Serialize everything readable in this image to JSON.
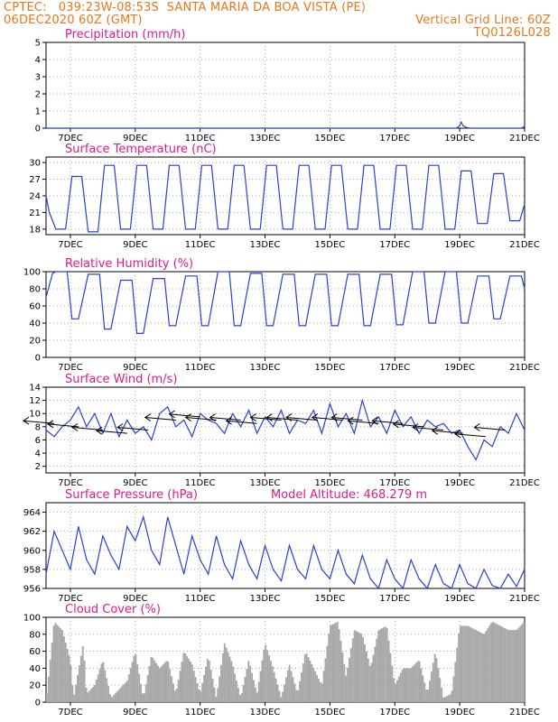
{
  "header": {
    "line1": "CPTEC:   039:23W-08:53S  SANTA MARIA DA BOA VISTA (PE)",
    "line2_left": "06DEC2020 60Z (GMT)",
    "line2_right": "Vertical Grid Line: 60Z",
    "line3_right": "TQ0126L028"
  },
  "colors": {
    "header": "#e8761a",
    "title": "#e0198c",
    "line": "#2a3fd6",
    "cloud": "#a8a8a8",
    "wind_arrow": "#000000"
  },
  "x_ticks": [
    "7DEC",
    "9DEC",
    "11DEC",
    "13DEC",
    "15DEC",
    "17DEC",
    "19DEC",
    "21DEC"
  ],
  "x_tick_days": [
    7,
    9,
    11,
    13,
    15,
    17,
    19,
    21
  ],
  "chart_data": [
    {
      "type": "line",
      "title": "Precipitation (mm/h)",
      "ylim": [
        0,
        5
      ],
      "yticks": [
        0,
        1,
        2,
        3,
        4,
        5
      ],
      "grid": "dotted",
      "series": [
        {
          "x_days": [
            6.25,
            18.9,
            19.0,
            19.05,
            19.1,
            19.2,
            19.3,
            20.9,
            21.0
          ],
          "values": [
            0,
            0,
            0.15,
            0.35,
            0.15,
            0.05,
            0,
            0,
            0.1
          ]
        }
      ]
    },
    {
      "type": "line",
      "title": "Surface Temperature (nC)",
      "ylim": [
        17,
        31
      ],
      "yticks": [
        18,
        21,
        24,
        27,
        30
      ],
      "grid": "dotted",
      "series": [
        {
          "x_days": [
            6.25,
            6.35,
            6.55,
            6.85,
            7.05,
            7.35,
            7.55,
            7.85,
            8.05,
            8.35,
            8.55,
            8.85,
            9.05,
            9.35,
            9.55,
            9.85,
            10.05,
            10.35,
            10.55,
            10.85,
            11.05,
            11.35,
            11.55,
            11.85,
            12.05,
            12.35,
            12.55,
            12.85,
            13.05,
            13.35,
            13.55,
            13.85,
            14.05,
            14.35,
            14.55,
            14.85,
            15.05,
            15.35,
            15.55,
            15.85,
            16.05,
            16.35,
            16.55,
            16.85,
            17.05,
            17.35,
            17.55,
            17.85,
            18.05,
            18.35,
            18.55,
            18.85,
            19.05,
            19.35,
            19.55,
            19.85,
            20.05,
            20.35,
            20.55,
            20.85,
            21.0
          ],
          "values": [
            24,
            21,
            18,
            18,
            27.5,
            27.5,
            17.5,
            17.5,
            29.5,
            29.5,
            18,
            18,
            29.5,
            29.5,
            18,
            18,
            29.5,
            29.5,
            18,
            18,
            29.5,
            29.5,
            18,
            18,
            29.5,
            29.5,
            18,
            18,
            29.5,
            29.5,
            18,
            18,
            29.5,
            29.5,
            18,
            18,
            29.5,
            29.5,
            18,
            18,
            29.5,
            29.5,
            18,
            18,
            29.5,
            29.5,
            18,
            18,
            29.5,
            29.5,
            18,
            18,
            28.5,
            28.5,
            19,
            19,
            28,
            28,
            19.5,
            19.5,
            22.5
          ]
        }
      ]
    },
    {
      "type": "line",
      "title": "Relative Humidity (%)",
      "ylim": [
        0,
        100
      ],
      "yticks": [
        0,
        20,
        40,
        60,
        80,
        100
      ],
      "grid": "dotted",
      "series": [
        {
          "x_days": [
            6.25,
            6.45,
            6.55,
            6.9,
            7.05,
            7.25,
            7.55,
            7.9,
            8.05,
            8.25,
            8.55,
            8.9,
            9.05,
            9.25,
            9.55,
            9.9,
            10.05,
            10.25,
            10.55,
            10.9,
            11.05,
            11.25,
            11.55,
            11.9,
            12.05,
            12.25,
            12.55,
            12.9,
            13.05,
            13.25,
            13.55,
            13.9,
            14.05,
            14.25,
            14.55,
            14.9,
            15.05,
            15.25,
            15.55,
            15.9,
            16.05,
            16.25,
            16.55,
            16.9,
            17.05,
            17.25,
            17.55,
            17.9,
            18.05,
            18.25,
            18.55,
            18.9,
            19.05,
            19.25,
            19.55,
            19.9,
            20.05,
            20.25,
            20.55,
            20.9,
            21.0
          ],
          "values": [
            70,
            98,
            100,
            100,
            45,
            45,
            97,
            97,
            33,
            33,
            90,
            90,
            28,
            28,
            92,
            92,
            37,
            37,
            95,
            95,
            37,
            37,
            100,
            100,
            37,
            37,
            98,
            98,
            37,
            37,
            97,
            97,
            37,
            37,
            97,
            97,
            37,
            37,
            97,
            97,
            37,
            37,
            97,
            97,
            38,
            38,
            100,
            100,
            40,
            40,
            100,
            100,
            40,
            40,
            95,
            95,
            45,
            45,
            95,
            95,
            80
          ]
        }
      ]
    },
    {
      "type": "line",
      "title": "Surface Wind (m/s)",
      "ylim": [
        1,
        14
      ],
      "yticks": [
        2,
        4,
        6,
        8,
        10,
        12,
        14
      ],
      "grid": "dotted",
      "series": [
        {
          "x_days": [
            6.25,
            6.5,
            6.75,
            7.0,
            7.25,
            7.5,
            7.75,
            8.0,
            8.25,
            8.5,
            8.75,
            9.0,
            9.25,
            9.5,
            9.75,
            10.0,
            10.25,
            10.5,
            10.75,
            11.0,
            11.25,
            11.5,
            11.75,
            12.0,
            12.25,
            12.5,
            12.75,
            13.0,
            13.25,
            13.5,
            13.75,
            14.0,
            14.25,
            14.5,
            14.75,
            15.0,
            15.25,
            15.5,
            15.75,
            16.0,
            16.25,
            16.5,
            16.75,
            17.0,
            17.25,
            17.5,
            17.75,
            18.0,
            18.25,
            18.5,
            18.75,
            19.0,
            19.25,
            19.5,
            19.75,
            20.0,
            20.25,
            20.5,
            20.75,
            21.0
          ],
          "values": [
            7.5,
            6.5,
            8,
            9,
            11,
            8,
            10,
            7,
            10,
            6.5,
            9,
            7,
            8,
            6,
            10,
            11,
            8,
            9,
            6.5,
            10,
            9,
            8.5,
            7,
            10,
            8,
            10.5,
            7,
            9.5,
            8,
            10.5,
            7,
            9,
            8.5,
            10.5,
            7,
            11.5,
            8,
            10,
            7,
            12,
            8,
            9.5,
            7,
            10.5,
            8,
            9.5,
            7,
            9,
            8,
            8.5,
            7,
            7.5,
            5,
            3,
            6,
            5,
            8,
            7,
            10,
            7.5
          ]
        }
      ],
      "wind_vectors": [
        {
          "x_days": 6.5,
          "y": 8.5
        },
        {
          "x_days": 7.25,
          "y": 8
        },
        {
          "x_days": 8,
          "y": 7.5
        },
        {
          "x_days": 8.75,
          "y": 7
        },
        {
          "x_days": 9.4,
          "y": 7.5
        },
        {
          "x_days": 10.25,
          "y": 9
        },
        {
          "x_days": 11,
          "y": 9.5
        },
        {
          "x_days": 11.5,
          "y": 9
        },
        {
          "x_days": 12.25,
          "y": 9
        },
        {
          "x_days": 12.75,
          "y": 8.5
        },
        {
          "x_days": 13.5,
          "y": 9
        },
        {
          "x_days": 14,
          "y": 9
        },
        {
          "x_days": 14.6,
          "y": 9
        },
        {
          "x_days": 15.4,
          "y": 9
        },
        {
          "x_days": 16,
          "y": 9
        },
        {
          "x_days": 16.5,
          "y": 8.5
        },
        {
          "x_days": 17.25,
          "y": 8.5
        },
        {
          "x_days": 17.9,
          "y": 8
        },
        {
          "x_days": 18.5,
          "y": 7.5
        },
        {
          "x_days": 19.1,
          "y": 7
        },
        {
          "x_days": 19.8,
          "y": 6.5
        },
        {
          "x_days": 20.4,
          "y": 7.5
        }
      ]
    },
    {
      "type": "line",
      "title": "Surface Pressure (hPa)",
      "annotation": "Model Altitude: 468.279 m",
      "ylim": [
        956,
        965
      ],
      "yticks": [
        956,
        958,
        960,
        962,
        964
      ],
      "grid": "dotted",
      "series": [
        {
          "x_days": [
            6.25,
            6.5,
            6.75,
            7.0,
            7.25,
            7.5,
            7.75,
            8.0,
            8.25,
            8.5,
            8.75,
            9.0,
            9.25,
            9.5,
            9.75,
            10.0,
            10.25,
            10.5,
            10.75,
            11.0,
            11.25,
            11.5,
            11.75,
            12.0,
            12.25,
            12.5,
            12.75,
            13.0,
            13.25,
            13.5,
            13.75,
            14.0,
            14.25,
            14.5,
            14.75,
            15.0,
            15.25,
            15.5,
            15.75,
            16.0,
            16.25,
            16.5,
            16.75,
            17.0,
            17.25,
            17.5,
            17.75,
            18.0,
            18.25,
            18.5,
            18.75,
            19.0,
            19.25,
            19.5,
            19.75,
            20.0,
            20.25,
            20.5,
            20.75,
            21.0
          ],
          "values": [
            957.5,
            962,
            960,
            958,
            962.5,
            959,
            957.5,
            961.5,
            959.5,
            958,
            962.5,
            961,
            963.5,
            960,
            958.5,
            963.5,
            960.5,
            957.5,
            961.5,
            959,
            957.5,
            961.5,
            958.5,
            957,
            961,
            958.5,
            957,
            960.5,
            958,
            956.8,
            960.5,
            958,
            957,
            960.5,
            958,
            957,
            960,
            957.5,
            956.5,
            959.5,
            957,
            956,
            959,
            957,
            956,
            959,
            957,
            956,
            958.5,
            956.5,
            956,
            958.5,
            956.5,
            956,
            958,
            956.3,
            956,
            957.5,
            956.2,
            958
          ]
        }
      ]
    },
    {
      "type": "area",
      "title": "Cloud Cover (%)",
      "ylim": [
        0,
        100
      ],
      "yticks": [
        0,
        20,
        40,
        60,
        80,
        100
      ],
      "grid": "dotted",
      "series": [
        {
          "x_days": [
            6.25,
            6.5,
            6.75,
            7.0,
            7.1,
            7.4,
            7.5,
            7.75,
            8.0,
            8.25,
            8.5,
            8.75,
            9.0,
            9.25,
            9.5,
            9.75,
            10.0,
            10.25,
            10.5,
            10.75,
            11.0,
            11.25,
            11.5,
            11.75,
            12.0,
            12.25,
            12.5,
            12.75,
            13.0,
            13.25,
            13.5,
            13.75,
            14.0,
            14.25,
            14.5,
            14.75,
            15.0,
            15.25,
            15.5,
            15.75,
            16.0,
            16.25,
            16.5,
            16.75,
            17.0,
            17.25,
            17.5,
            17.75,
            18.0,
            18.25,
            18.5,
            18.75,
            19.0,
            19.25,
            19.5,
            19.75,
            20.0,
            20.25,
            20.5,
            20.75,
            21.0
          ],
          "values": [
            0,
            95,
            85,
            50,
            5,
            70,
            10,
            20,
            50,
            5,
            15,
            25,
            60,
            5,
            55,
            40,
            50,
            10,
            60,
            45,
            10,
            55,
            5,
            70,
            45,
            5,
            50,
            10,
            70,
            40,
            5,
            45,
            10,
            60,
            40,
            20,
            90,
            95,
            30,
            85,
            80,
            40,
            85,
            90,
            20,
            40,
            40,
            50,
            10,
            60,
            5,
            10,
            90,
            90,
            85,
            80,
            95,
            90,
            85,
            85,
            95
          ]
        }
      ]
    }
  ]
}
